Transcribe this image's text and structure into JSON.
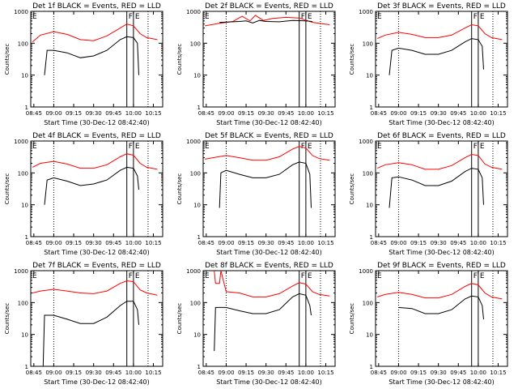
{
  "chart_data": [
    {
      "type": "line",
      "title": "Det 1f BLACK = Events, RED = LLD",
      "xlabel": "Start Time (30-Dec-12 08:42:40)",
      "ylabel": "Counts/sec",
      "y_scale": "log",
      "ylim": [
        1,
        1000
      ],
      "x_ticks": [
        "08:45",
        "09:00",
        "09:15",
        "09:30",
        "09:45",
        "10:00",
        "10:15"
      ],
      "y_ticks": [
        "1",
        "10",
        "100",
        "1000"
      ],
      "markers": [
        "F",
        "E"
      ],
      "series": [
        {
          "name": "Events",
          "color": "#000000",
          "x": [
            "08:53",
            "08:55",
            "09:00",
            "09:10",
            "09:20",
            "09:30",
            "09:40",
            "09:50",
            "09:55",
            "10:00",
            "10:03",
            "10:04"
          ],
          "values": [
            10,
            60,
            60,
            50,
            35,
            40,
            60,
            130,
            160,
            150,
            100,
            10
          ]
        },
        {
          "name": "LLD",
          "color": "#ff0000",
          "x": [
            "08:44",
            "08:50",
            "09:00",
            "09:10",
            "09:20",
            "09:30",
            "09:40",
            "09:50",
            "09:55",
            "10:00",
            "10:05",
            "10:10",
            "10:18"
          ],
          "values": [
            110,
            180,
            230,
            190,
            130,
            120,
            170,
            300,
            400,
            350,
            200,
            150,
            130
          ]
        }
      ]
    },
    {
      "type": "line",
      "title": "Det 2f BLACK = Events, RED = LLD",
      "xlabel": "Start Time (30-Dec-12 08:42:40)",
      "ylabel": "Counts/sec",
      "y_scale": "log",
      "ylim": [
        1,
        1000
      ],
      "x_ticks": [
        "08:45",
        "09:00",
        "09:15",
        "09:30",
        "09:45",
        "10:00",
        "10:15"
      ],
      "y_ticks": [
        "1",
        "10",
        "100",
        "1000"
      ],
      "markers": [
        "F",
        "E"
      ],
      "series": [
        {
          "name": "Events",
          "color": "#000000",
          "x": [
            "08:55",
            "09:00",
            "09:10",
            "09:15",
            "09:20",
            "09:25",
            "09:30",
            "09:40",
            "09:50",
            "10:00",
            "10:05"
          ],
          "values": [
            450,
            460,
            480,
            500,
            430,
            520,
            480,
            470,
            520,
            500,
            480
          ]
        },
        {
          "name": "LLD",
          "color": "#ff0000",
          "x": [
            "08:44",
            "08:55",
            "09:05",
            "09:12",
            "09:18",
            "09:22",
            "09:28",
            "09:35",
            "09:45",
            "09:55",
            "10:05",
            "10:18"
          ],
          "values": [
            350,
            420,
            480,
            700,
            500,
            750,
            520,
            600,
            650,
            620,
            450,
            380
          ]
        }
      ]
    },
    {
      "type": "line",
      "title": "Det 3f BLACK = Events, RED = LLD",
      "xlabel": "Start Time (30-Dec-12 08:42:40)",
      "ylabel": "Counts/sec",
      "y_scale": "log",
      "ylim": [
        1,
        1000
      ],
      "x_ticks": [
        "08:45",
        "09:00",
        "09:15",
        "09:30",
        "09:45",
        "10:00",
        "10:15"
      ],
      "y_ticks": [
        "1",
        "10",
        "100",
        "1000"
      ],
      "markers": [
        "F",
        "E"
      ],
      "series": [
        {
          "name": "Events",
          "color": "#000000",
          "x": [
            "08:53",
            "08:55",
            "09:00",
            "09:10",
            "09:20",
            "09:30",
            "09:40",
            "09:50",
            "09:55",
            "10:00",
            "10:03",
            "10:04"
          ],
          "values": [
            10,
            60,
            70,
            60,
            45,
            45,
            60,
            110,
            140,
            130,
            80,
            15
          ]
        },
        {
          "name": "LLD",
          "color": "#ff0000",
          "x": [
            "08:44",
            "08:50",
            "09:00",
            "09:10",
            "09:20",
            "09:30",
            "09:40",
            "09:50",
            "09:55",
            "10:00",
            "10:05",
            "10:10",
            "10:18"
          ],
          "values": [
            140,
            180,
            220,
            190,
            150,
            150,
            180,
            300,
            380,
            350,
            200,
            150,
            130
          ]
        }
      ]
    },
    {
      "type": "line",
      "title": "Det 4f BLACK = Events, RED = LLD",
      "xlabel": "Start Time (30-Dec-12 08:42:40)",
      "ylabel": "Counts/sec",
      "y_scale": "log",
      "ylim": [
        1,
        1000
      ],
      "x_ticks": [
        "08:45",
        "09:00",
        "09:15",
        "09:30",
        "09:45",
        "10:00",
        "10:15"
      ],
      "y_ticks": [
        "1",
        "10",
        "100",
        "1000"
      ],
      "markers": [
        "F",
        "E"
      ],
      "series": [
        {
          "name": "Events",
          "color": "#000000",
          "x": [
            "08:53",
            "08:55",
            "09:00",
            "09:10",
            "09:20",
            "09:30",
            "09:40",
            "09:50",
            "09:55",
            "10:00",
            "10:03",
            "10:04"
          ],
          "values": [
            10,
            60,
            70,
            55,
            40,
            45,
            60,
            120,
            150,
            140,
            80,
            30
          ]
        },
        {
          "name": "LLD",
          "color": "#ff0000",
          "x": [
            "08:44",
            "08:50",
            "09:00",
            "09:10",
            "09:20",
            "09:30",
            "09:40",
            "09:50",
            "09:55",
            "10:00",
            "10:05",
            "10:10",
            "10:18"
          ],
          "values": [
            150,
            200,
            230,
            190,
            140,
            140,
            180,
            320,
            400,
            360,
            200,
            150,
            130
          ]
        }
      ]
    },
    {
      "type": "line",
      "title": "Det 5f BLACK = Events, RED = LLD",
      "xlabel": "Start Time (30-Dec-12 08:42:40)",
      "ylabel": "Counts/sec",
      "y_scale": "log",
      "ylim": [
        1,
        1000
      ],
      "x_ticks": [
        "08:45",
        "09:00",
        "09:15",
        "09:30",
        "09:45",
        "10:00",
        "10:15"
      ],
      "y_ticks": [
        "1",
        "10",
        "100",
        "1000"
      ],
      "markers": [
        "F",
        "E"
      ],
      "series": [
        {
          "name": "Events",
          "color": "#000000",
          "x": [
            "08:55",
            "08:56",
            "09:00",
            "09:10",
            "09:20",
            "09:30",
            "09:40",
            "09:50",
            "09:55",
            "10:00",
            "10:03",
            "10:04"
          ],
          "values": [
            8,
            100,
            120,
            90,
            70,
            70,
            90,
            180,
            220,
            200,
            90,
            8
          ]
        },
        {
          "name": "LLD",
          "color": "#ff0000",
          "x": [
            "08:44",
            "08:50",
            "09:00",
            "09:10",
            "09:20",
            "09:30",
            "09:40",
            "09:50",
            "09:55",
            "10:00",
            "10:05",
            "10:10",
            "10:18"
          ],
          "values": [
            270,
            300,
            350,
            300,
            250,
            250,
            320,
            560,
            680,
            600,
            350,
            280,
            250
          ]
        }
      ]
    },
    {
      "type": "line",
      "title": "Det 6f BLACK = Events, RED = LLD",
      "xlabel": "Start Time (30-Dec-12 08:42:40)",
      "ylabel": "Counts/sec",
      "y_scale": "log",
      "ylim": [
        1,
        1000
      ],
      "x_ticks": [
        "08:45",
        "09:00",
        "09:15",
        "09:30",
        "09:45",
        "10:00",
        "10:15"
      ],
      "y_ticks": [
        "1",
        "10",
        "100",
        "1000"
      ],
      "markers": [
        "F",
        "E"
      ],
      "series": [
        {
          "name": "Events",
          "color": "#000000",
          "x": [
            "08:53",
            "08:55",
            "09:00",
            "09:10",
            "09:20",
            "09:30",
            "09:40",
            "09:50",
            "09:55",
            "10:00",
            "10:03",
            "10:04"
          ],
          "values": [
            8,
            70,
            75,
            60,
            40,
            40,
            55,
            110,
            140,
            130,
            70,
            10
          ]
        },
        {
          "name": "LLD",
          "color": "#ff0000",
          "x": [
            "08:44",
            "08:50",
            "09:00",
            "09:10",
            "09:20",
            "09:30",
            "09:40",
            "09:50",
            "09:55",
            "10:00",
            "10:05",
            "10:10",
            "10:18"
          ],
          "values": [
            140,
            180,
            210,
            180,
            130,
            130,
            170,
            300,
            380,
            350,
            190,
            150,
            130
          ]
        }
      ]
    },
    {
      "type": "line",
      "title": "Det 7f BLACK = Events, RED = LLD",
      "xlabel": "Start Time (30-Dec-12 08:42:40)",
      "ylabel": "Counts/sec",
      "y_scale": "log",
      "ylim": [
        1,
        1000
      ],
      "x_ticks": [
        "08:45",
        "09:00",
        "09:15",
        "09:30",
        "09:45",
        "10:00",
        "10:15"
      ],
      "y_ticks": [
        "1",
        "10",
        "100",
        "1000"
      ],
      "markers": [
        "F",
        "E"
      ],
      "series": [
        {
          "name": "Events",
          "color": "#000000",
          "x": [
            "08:52",
            "08:53",
            "09:00",
            "09:10",
            "09:20",
            "09:30",
            "09:40",
            "09:50",
            "09:55",
            "10:00",
            "10:03",
            "10:04"
          ],
          "values": [
            1,
            40,
            40,
            30,
            22,
            22,
            35,
            80,
            110,
            110,
            60,
            20
          ]
        },
        {
          "name": "LLD",
          "color": "#ff0000",
          "x": [
            "08:44",
            "08:50",
            "09:00",
            "09:10",
            "09:20",
            "09:30",
            "09:40",
            "09:50",
            "09:55",
            "10:00",
            "10:05",
            "10:10",
            "10:18"
          ],
          "values": [
            200,
            230,
            260,
            230,
            200,
            190,
            230,
            400,
            480,
            450,
            250,
            200,
            170
          ]
        }
      ]
    },
    {
      "type": "line",
      "title": "Det 8f BLACK = Events, RED = LLD",
      "xlabel": "Start Time (30-Dec-12 08:42:40)",
      "ylabel": "Counts/sec",
      "y_scale": "log",
      "ylim": [
        1,
        1000
      ],
      "x_ticks": [
        "08:45",
        "09:00",
        "09:15",
        "09:30",
        "09:45",
        "10:00",
        "10:15"
      ],
      "y_ticks": [
        "1",
        "10",
        "100",
        "1000"
      ],
      "markers": [
        "F",
        "E"
      ],
      "series": [
        {
          "name": "Events",
          "color": "#000000",
          "x": [
            "08:51",
            "08:52",
            "09:00",
            "09:10",
            "09:20",
            "09:30",
            "09:40",
            "09:50",
            "09:55",
            "10:00",
            "10:03",
            "10:04"
          ],
          "values": [
            3,
            70,
            70,
            55,
            45,
            45,
            60,
            150,
            190,
            170,
            80,
            40
          ]
        },
        {
          "name": "LLD",
          "color": "#ff0000",
          "x": [
            "08:51",
            "08:52",
            "08:55",
            "08:56",
            "09:00",
            "09:10",
            "09:20",
            "09:30",
            "09:40",
            "09:50",
            "09:55",
            "10:00",
            "10:05",
            "10:10",
            "10:18"
          ],
          "values": [
            1000,
            400,
            400,
            1000,
            220,
            200,
            150,
            150,
            190,
            330,
            420,
            380,
            220,
            180,
            160
          ]
        }
      ]
    },
    {
      "type": "line",
      "title": "Det 9f BLACK = Events, RED = LLD",
      "xlabel": "Start Time (30-Dec-12 08:42:40)",
      "ylabel": "Counts/sec",
      "y_scale": "log",
      "ylim": [
        1,
        1000
      ],
      "x_ticks": [
        "08:45",
        "09:00",
        "09:15",
        "09:30",
        "09:45",
        "10:00",
        "10:15"
      ],
      "y_ticks": [
        "1",
        "10",
        "100",
        "1000"
      ],
      "markers": [
        "F",
        "E"
      ],
      "series": [
        {
          "name": "Events",
          "color": "#000000",
          "x": [
            "09:00",
            "09:10",
            "09:20",
            "09:30",
            "09:40",
            "09:50",
            "09:55",
            "10:00",
            "10:03",
            "10:04"
          ],
          "values": [
            70,
            65,
            45,
            45,
            60,
            130,
            160,
            150,
            80,
            30
          ]
        },
        {
          "name": "LLD",
          "color": "#ff0000",
          "x": [
            "08:44",
            "08:50",
            "09:00",
            "09:10",
            "09:20",
            "09:30",
            "09:40",
            "09:50",
            "09:55",
            "10:00",
            "10:05",
            "10:10",
            "10:18"
          ],
          "values": [
            150,
            180,
            210,
            180,
            140,
            140,
            180,
            320,
            400,
            360,
            200,
            150,
            130
          ]
        }
      ]
    }
  ]
}
